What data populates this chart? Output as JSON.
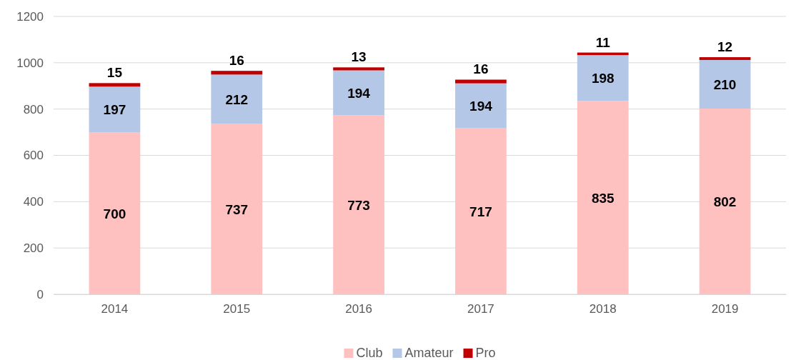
{
  "chart_data": {
    "type": "bar",
    "stacked": true,
    "categories": [
      "2014",
      "2015",
      "2016",
      "2017",
      "2018",
      "2019"
    ],
    "series": [
      {
        "name": "Club",
        "color": "#ffc0c0",
        "values": [
          700,
          737,
          773,
          717,
          835,
          802
        ]
      },
      {
        "name": "Amateur",
        "color": "#b4c7e7",
        "values": [
          197,
          212,
          194,
          194,
          198,
          210
        ]
      },
      {
        "name": "Pro",
        "color": "#c00000",
        "values": [
          15,
          16,
          13,
          16,
          11,
          12
        ]
      }
    ],
    "ylim": [
      0,
      1200
    ],
    "yticks": [
      0,
      200,
      400,
      600,
      800,
      1000,
      1200
    ],
    "grid": "y",
    "legend": "bottom",
    "data_labels": true
  }
}
